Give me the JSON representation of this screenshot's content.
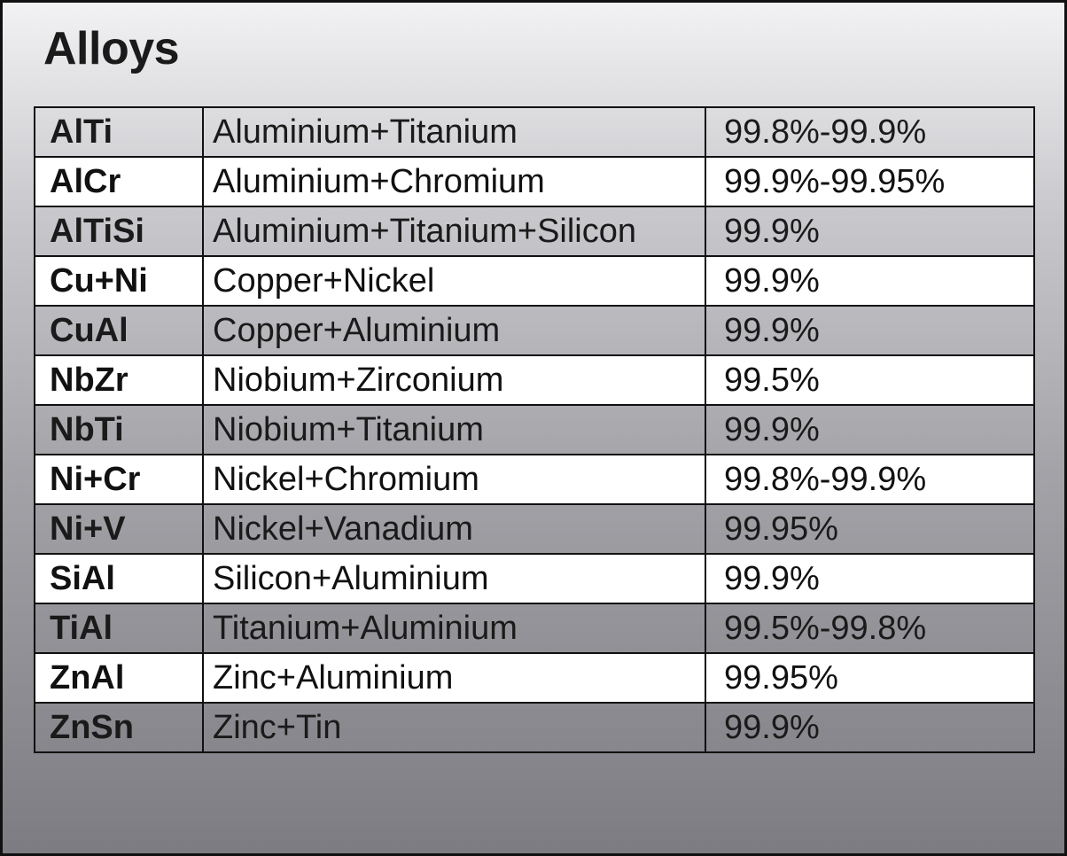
{
  "header": {
    "title": "Alloys"
  },
  "table": {
    "rows": [
      [
        "AlTi",
        "Aluminium+Titanium",
        "99.8%-99.9%"
      ],
      [
        "AlCr",
        "Aluminium+Chromium",
        "99.9%-99.95%"
      ],
      [
        "AlTiSi",
        "Aluminium+Titanium+Silicon",
        "99.9%"
      ],
      [
        "Cu+Ni",
        "Copper+Nickel",
        "99.9%"
      ],
      [
        "CuAl",
        "Copper+Aluminium",
        "99.9%"
      ],
      [
        "NbZr",
        "Niobium+Zirconium",
        "99.5%"
      ],
      [
        "NbTi",
        "Niobium+Titanium",
        "99.9%"
      ],
      [
        "Ni+Cr",
        "Nickel+Chromium",
        "99.8%-99.9%"
      ],
      [
        "Ni+V",
        "Nickel+Vanadium",
        "99.95%"
      ],
      [
        "SiAl",
        "Silicon+Aluminium",
        "99.9%"
      ],
      [
        "TiAl",
        "Titanium+Aluminium",
        "99.5%-99.8%"
      ],
      [
        "ZnAl",
        "Zinc+Aluminium",
        "99.95%"
      ],
      [
        "ZnSn",
        "Zinc+Tin",
        "99.9%"
      ]
    ]
  }
}
